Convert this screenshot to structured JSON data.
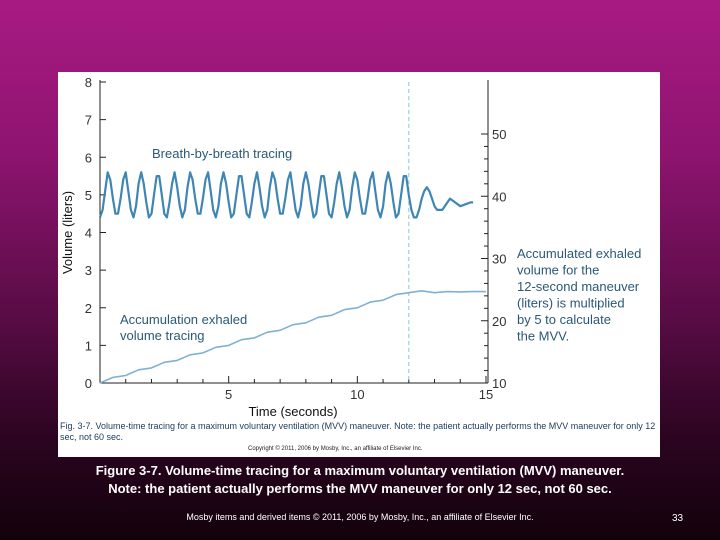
{
  "chart_data": {
    "type": "line",
    "xlabel": "Time (seconds)",
    "ylabel": "Volume (liters)",
    "xlim": [
      0,
      15
    ],
    "ylim": [
      0,
      8
    ],
    "y2lim": [
      10,
      50
    ],
    "x_ticks": [
      "5",
      "10",
      "15"
    ],
    "y_ticks": [
      "0",
      "1",
      "2",
      "3",
      "4",
      "5",
      "6",
      "7",
      "8"
    ],
    "y2_ticks": [
      "10",
      "20",
      "30",
      "40",
      "50"
    ],
    "marker_x": 12,
    "series": [
      {
        "name": "Breath-by-breath tracing",
        "color": "#3f86b4",
        "points": [
          [
            0.0,
            4.4
          ],
          [
            0.1,
            4.6
          ],
          [
            0.2,
            5.1
          ],
          [
            0.3,
            5.6
          ],
          [
            0.4,
            5.4
          ],
          [
            0.5,
            4.9
          ],
          [
            0.6,
            4.5
          ],
          [
            0.7,
            4.5
          ],
          [
            0.8,
            4.9
          ],
          [
            0.9,
            5.4
          ],
          [
            1.0,
            5.6
          ],
          [
            1.1,
            5.1
          ],
          [
            1.2,
            4.6
          ],
          [
            1.3,
            4.4
          ],
          [
            1.4,
            4.7
          ],
          [
            1.5,
            5.3
          ],
          [
            1.6,
            5.6
          ],
          [
            1.7,
            5.3
          ],
          [
            1.8,
            4.8
          ],
          [
            1.9,
            4.4
          ],
          [
            2.0,
            4.5
          ],
          [
            2.1,
            5.0
          ],
          [
            2.2,
            5.5
          ],
          [
            2.3,
            5.5
          ],
          [
            2.4,
            5.0
          ],
          [
            2.5,
            4.5
          ],
          [
            2.6,
            4.4
          ],
          [
            2.7,
            4.8
          ],
          [
            2.8,
            5.3
          ],
          [
            2.9,
            5.6
          ],
          [
            3.0,
            5.2
          ],
          [
            3.1,
            4.7
          ],
          [
            3.2,
            4.4
          ],
          [
            3.3,
            4.6
          ],
          [
            3.4,
            5.2
          ],
          [
            3.5,
            5.6
          ],
          [
            3.6,
            5.4
          ],
          [
            3.7,
            4.9
          ],
          [
            3.8,
            4.5
          ],
          [
            3.9,
            4.5
          ],
          [
            4.0,
            4.9
          ],
          [
            4.1,
            5.4
          ],
          [
            4.2,
            5.6
          ],
          [
            4.3,
            5.1
          ],
          [
            4.4,
            4.6
          ],
          [
            4.5,
            4.4
          ],
          [
            4.6,
            4.7
          ],
          [
            4.7,
            5.3
          ],
          [
            4.8,
            5.6
          ],
          [
            4.9,
            5.3
          ],
          [
            5.0,
            4.8
          ],
          [
            5.1,
            4.4
          ],
          [
            5.2,
            4.5
          ],
          [
            5.3,
            5.0
          ],
          [
            5.4,
            5.5
          ],
          [
            5.5,
            5.5
          ],
          [
            5.6,
            5.0
          ],
          [
            5.7,
            4.5
          ],
          [
            5.8,
            4.4
          ],
          [
            5.9,
            4.8
          ],
          [
            6.0,
            5.3
          ],
          [
            6.1,
            5.6
          ],
          [
            6.2,
            5.2
          ],
          [
            6.3,
            4.7
          ],
          [
            6.4,
            4.4
          ],
          [
            6.5,
            4.6
          ],
          [
            6.6,
            5.2
          ],
          [
            6.7,
            5.6
          ],
          [
            6.8,
            5.4
          ],
          [
            6.9,
            4.9
          ],
          [
            7.0,
            4.5
          ],
          [
            7.1,
            4.5
          ],
          [
            7.2,
            4.9
          ],
          [
            7.3,
            5.4
          ],
          [
            7.4,
            5.6
          ],
          [
            7.5,
            5.1
          ],
          [
            7.6,
            4.6
          ],
          [
            7.7,
            4.4
          ],
          [
            7.8,
            4.7
          ],
          [
            7.9,
            5.3
          ],
          [
            8.0,
            5.6
          ],
          [
            8.1,
            5.3
          ],
          [
            8.2,
            4.8
          ],
          [
            8.3,
            4.4
          ],
          [
            8.4,
            4.5
          ],
          [
            8.5,
            5.0
          ],
          [
            8.6,
            5.5
          ],
          [
            8.7,
            5.5
          ],
          [
            8.8,
            5.0
          ],
          [
            8.9,
            4.5
          ],
          [
            9.0,
            4.4
          ],
          [
            9.1,
            4.8
          ],
          [
            9.2,
            5.3
          ],
          [
            9.3,
            5.6
          ],
          [
            9.4,
            5.2
          ],
          [
            9.5,
            4.7
          ],
          [
            9.6,
            4.4
          ],
          [
            9.7,
            4.6
          ],
          [
            9.8,
            5.2
          ],
          [
            9.9,
            5.6
          ],
          [
            10.0,
            5.4
          ],
          [
            10.1,
            4.9
          ],
          [
            10.2,
            4.5
          ],
          [
            10.3,
            4.5
          ],
          [
            10.4,
            4.9
          ],
          [
            10.5,
            5.4
          ],
          [
            10.6,
            5.6
          ],
          [
            10.7,
            5.1
          ],
          [
            10.8,
            4.6
          ],
          [
            10.9,
            4.4
          ],
          [
            11.0,
            4.7
          ],
          [
            11.1,
            5.3
          ],
          [
            11.2,
            5.6
          ],
          [
            11.3,
            5.3
          ],
          [
            11.4,
            4.8
          ],
          [
            11.5,
            4.4
          ],
          [
            11.6,
            4.5
          ],
          [
            11.7,
            5.0
          ],
          [
            11.8,
            5.5
          ],
          [
            11.9,
            5.5
          ],
          [
            12.0,
            5.0
          ],
          [
            12.1,
            4.6
          ],
          [
            12.2,
            4.4
          ],
          [
            12.3,
            4.4
          ],
          [
            12.4,
            4.6
          ],
          [
            12.5,
            4.9
          ],
          [
            12.6,
            5.1
          ],
          [
            12.7,
            5.2
          ],
          [
            12.8,
            5.1
          ],
          [
            12.9,
            4.9
          ],
          [
            13.0,
            4.7
          ],
          [
            13.1,
            4.6
          ],
          [
            13.2,
            4.6
          ],
          [
            13.3,
            4.6
          ],
          [
            13.4,
            4.7
          ],
          [
            13.5,
            4.8
          ],
          [
            13.6,
            4.9
          ],
          [
            13.8,
            4.8
          ],
          [
            14.0,
            4.7
          ],
          [
            14.2,
            4.75
          ],
          [
            14.4,
            4.8
          ],
          [
            14.5,
            4.8
          ]
        ]
      },
      {
        "name": "Accumulation exhaled volume tracing",
        "color": "#7fb1d4",
        "points": [
          [
            0.0,
            0.0
          ],
          [
            0.5,
            0.15
          ],
          [
            1.0,
            0.2
          ],
          [
            1.5,
            0.35
          ],
          [
            2.0,
            0.4
          ],
          [
            2.5,
            0.55
          ],
          [
            3.0,
            0.6
          ],
          [
            3.5,
            0.75
          ],
          [
            4.0,
            0.8
          ],
          [
            4.5,
            0.95
          ],
          [
            5.0,
            1.0
          ],
          [
            5.5,
            1.15
          ],
          [
            6.0,
            1.2
          ],
          [
            6.5,
            1.35
          ],
          [
            7.0,
            1.4
          ],
          [
            7.5,
            1.55
          ],
          [
            8.0,
            1.6
          ],
          [
            8.5,
            1.75
          ],
          [
            9.0,
            1.8
          ],
          [
            9.5,
            1.95
          ],
          [
            10.0,
            2.0
          ],
          [
            10.5,
            2.15
          ],
          [
            11.0,
            2.2
          ],
          [
            11.5,
            2.35
          ],
          [
            12.0,
            2.4
          ],
          [
            12.5,
            2.45
          ],
          [
            13.0,
            2.4
          ],
          [
            13.5,
            2.43
          ],
          [
            14.0,
            2.42
          ],
          [
            14.5,
            2.43
          ],
          [
            15.0,
            2.43
          ]
        ]
      }
    ],
    "annotations": [
      {
        "id": "breath",
        "lines": [
          "Breath-by-breath tracing"
        ]
      },
      {
        "id": "accum",
        "lines": [
          "Accumulation exhaled",
          "volume tracing"
        ]
      },
      {
        "id": "mvv",
        "lines": [
          "Accumulated exhaled",
          "volume for the",
          "12-second maneuver",
          "(liters) is multiplied",
          "by 5 to calculate",
          "the MVV."
        ]
      }
    ]
  },
  "figure": {
    "caption": "Fig. 3-7. Volume-time tracing for a maximum voluntary ventilation (MVV) maneuver. Note: the patient actually performs the MVV maneuver for only 12 sec, not 60 sec.",
    "copyright": "Copyright © 2011, 2006 by Mosby, Inc., an affiliate of Elsevier Inc."
  },
  "slide": {
    "caption_line1": "Figure 3-7. Volume-time tracing for a maximum voluntary ventilation (MVV) maneuver.",
    "caption_line2": "Note: the patient actually performs the MVV maneuver for only 12 sec, not 60 sec.",
    "footer": "Mosby items and derived items © 2011, 2006 by Mosby, Inc., an affiliate of Elsevier Inc.",
    "page_number": "33"
  }
}
